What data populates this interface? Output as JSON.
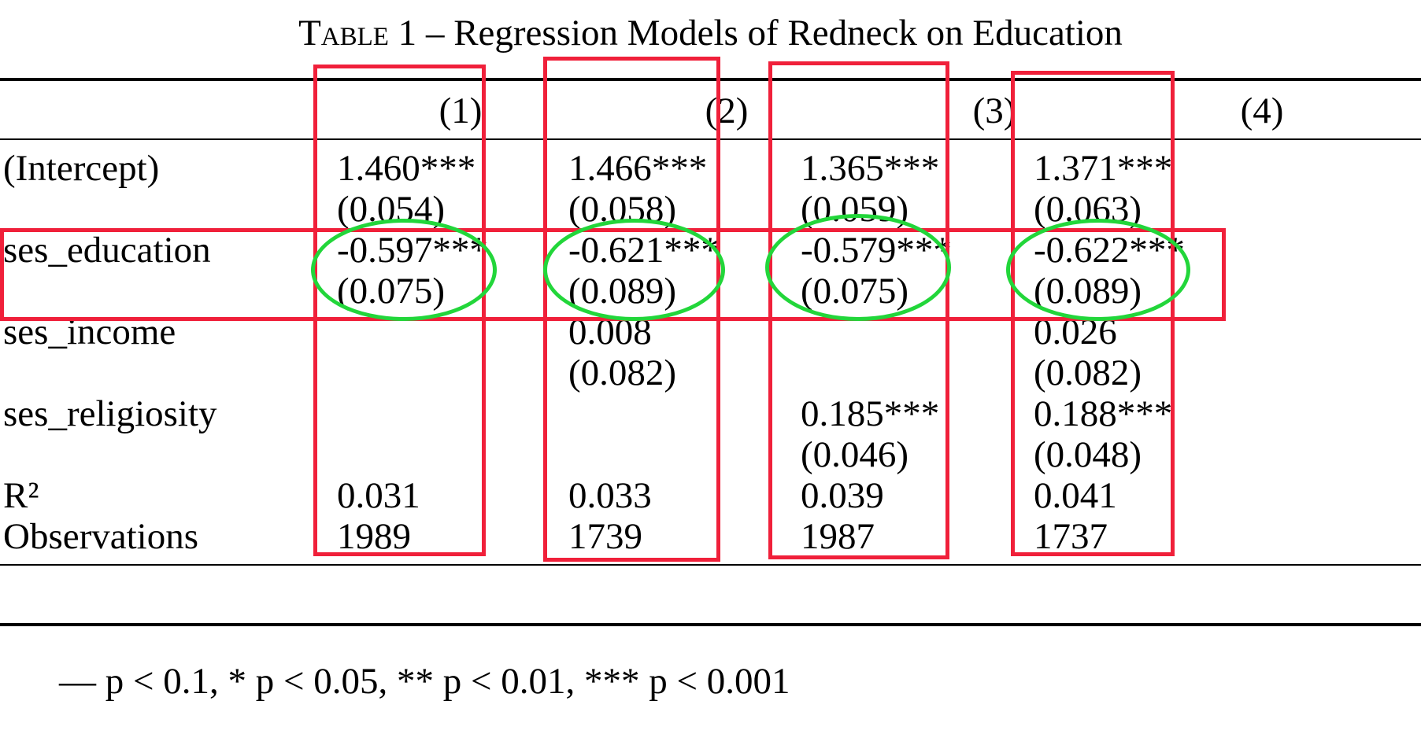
{
  "caption": {
    "label": "Table 1",
    "title": "– Regression Models of Redneck on Education"
  },
  "columns": [
    "(1)",
    "(2)",
    "(3)",
    "(4)"
  ],
  "rows": [
    {
      "label": "(Intercept)",
      "cells": [
        {
          "coef": "1.460***",
          "se": "(0.054)"
        },
        {
          "coef": "1.466***",
          "se": "(0.058)"
        },
        {
          "coef": "1.365***",
          "se": "(0.059)"
        },
        {
          "coef": "1.371***",
          "se": "(0.063)"
        }
      ]
    },
    {
      "label": "ses_education",
      "cells": [
        {
          "coef": "-0.597***",
          "se": "(0.075)"
        },
        {
          "coef": "-0.621***",
          "se": "(0.089)"
        },
        {
          "coef": "-0.579***",
          "se": "(0.075)"
        },
        {
          "coef": "-0.622***",
          "se": "(0.089)"
        }
      ]
    },
    {
      "label": "ses_income",
      "cells": [
        {
          "coef": "",
          "se": ""
        },
        {
          "coef": "0.008",
          "se": "(0.082)"
        },
        {
          "coef": "",
          "se": ""
        },
        {
          "coef": "0.026",
          "se": "(0.082)"
        }
      ]
    },
    {
      "label": "ses_religiosity",
      "cells": [
        {
          "coef": "",
          "se": ""
        },
        {
          "coef": "",
          "se": ""
        },
        {
          "coef": "0.185***",
          "se": "(0.046)"
        },
        {
          "coef": "0.188***",
          "se": "(0.048)"
        }
      ]
    }
  ],
  "stats": [
    {
      "label": "R²",
      "values": [
        "0.031",
        "0.033",
        "0.039",
        "0.041"
      ]
    },
    {
      "label": "Observations",
      "values": [
        "1989",
        "1739",
        "1987",
        "1737"
      ]
    }
  ],
  "footnote": "— p < 0.1, * p < 0.05, ** p < 0.01, *** p < 0.001",
  "annotations": {
    "box_color": "#f0203a",
    "oval_color": "#22d63a",
    "highlighted_row": "ses_education"
  }
}
